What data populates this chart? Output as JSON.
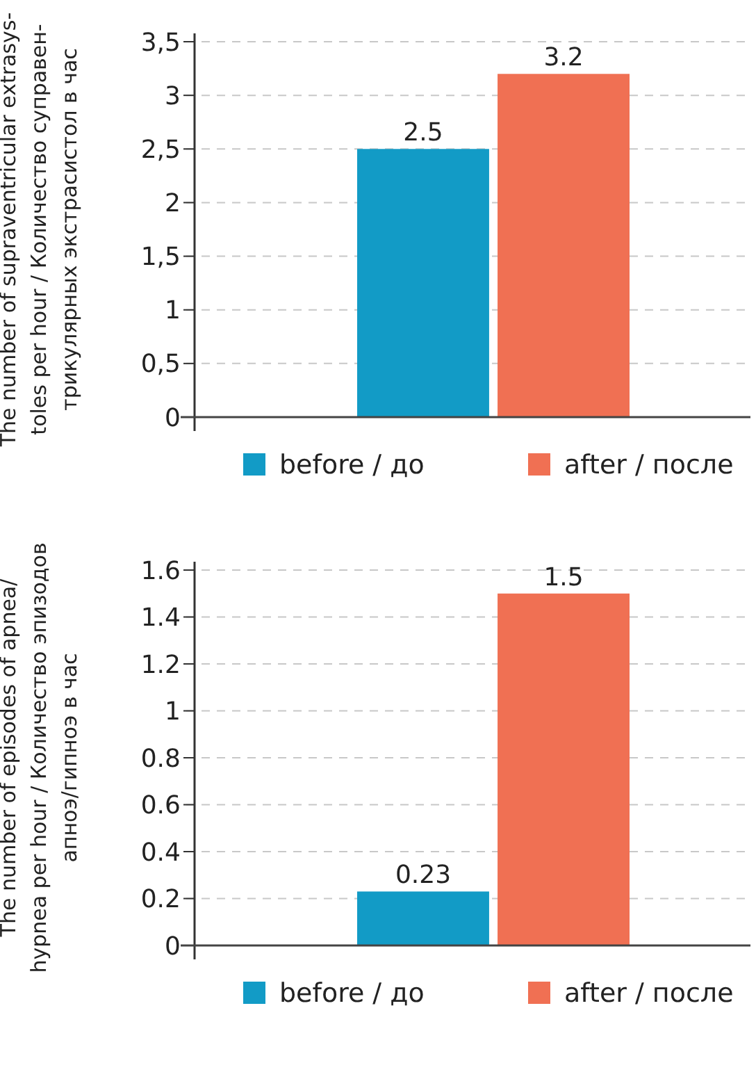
{
  "chart_data": [
    {
      "type": "bar",
      "ylabel": "The number of supraventricular extrasys-\ntoles per hour / Количество суправен-\nтрикулярных экстрасистол в час",
      "categories": [
        null
      ],
      "series": [
        {
          "name": "before / до",
          "color": "#129bc6",
          "values": [
            2.5
          ],
          "value_labels": [
            "2.5"
          ]
        },
        {
          "name": "after / после",
          "color": "#f07053",
          "values": [
            3.2
          ],
          "value_labels": [
            "3.2"
          ]
        }
      ],
      "ylim": [
        0,
        3.5
      ],
      "yticks": [
        0,
        {
          "value": 0.5,
          "label": "0,5"
        },
        1,
        {
          "value": 1.5,
          "label": "1,5"
        },
        2,
        {
          "value": 2.5,
          "label": "2,5"
        },
        3,
        {
          "value": 3.5,
          "label": "3,5"
        }
      ],
      "grid": "y",
      "legend": "bottom"
    },
    {
      "type": "bar",
      "ylabel": "The number of episodes of apnea/\nhypnea per hour / Количество эпизодов\nапноэ/гипноэ в час",
      "categories": [
        null
      ],
      "series": [
        {
          "name": "before / до",
          "color": "#129bc6",
          "values": [
            0.23
          ],
          "value_labels": [
            "0.23"
          ]
        },
        {
          "name": "after / после",
          "color": "#f07053",
          "values": [
            1.5
          ],
          "value_labels": [
            "1.5"
          ]
        }
      ],
      "ylim": [
        0,
        1.6
      ],
      "yticks": [
        0,
        0.2,
        0.4,
        0.6,
        0.8,
        1,
        1.2,
        1.4,
        1.6
      ],
      "grid": "y",
      "legend": "bottom"
    }
  ]
}
